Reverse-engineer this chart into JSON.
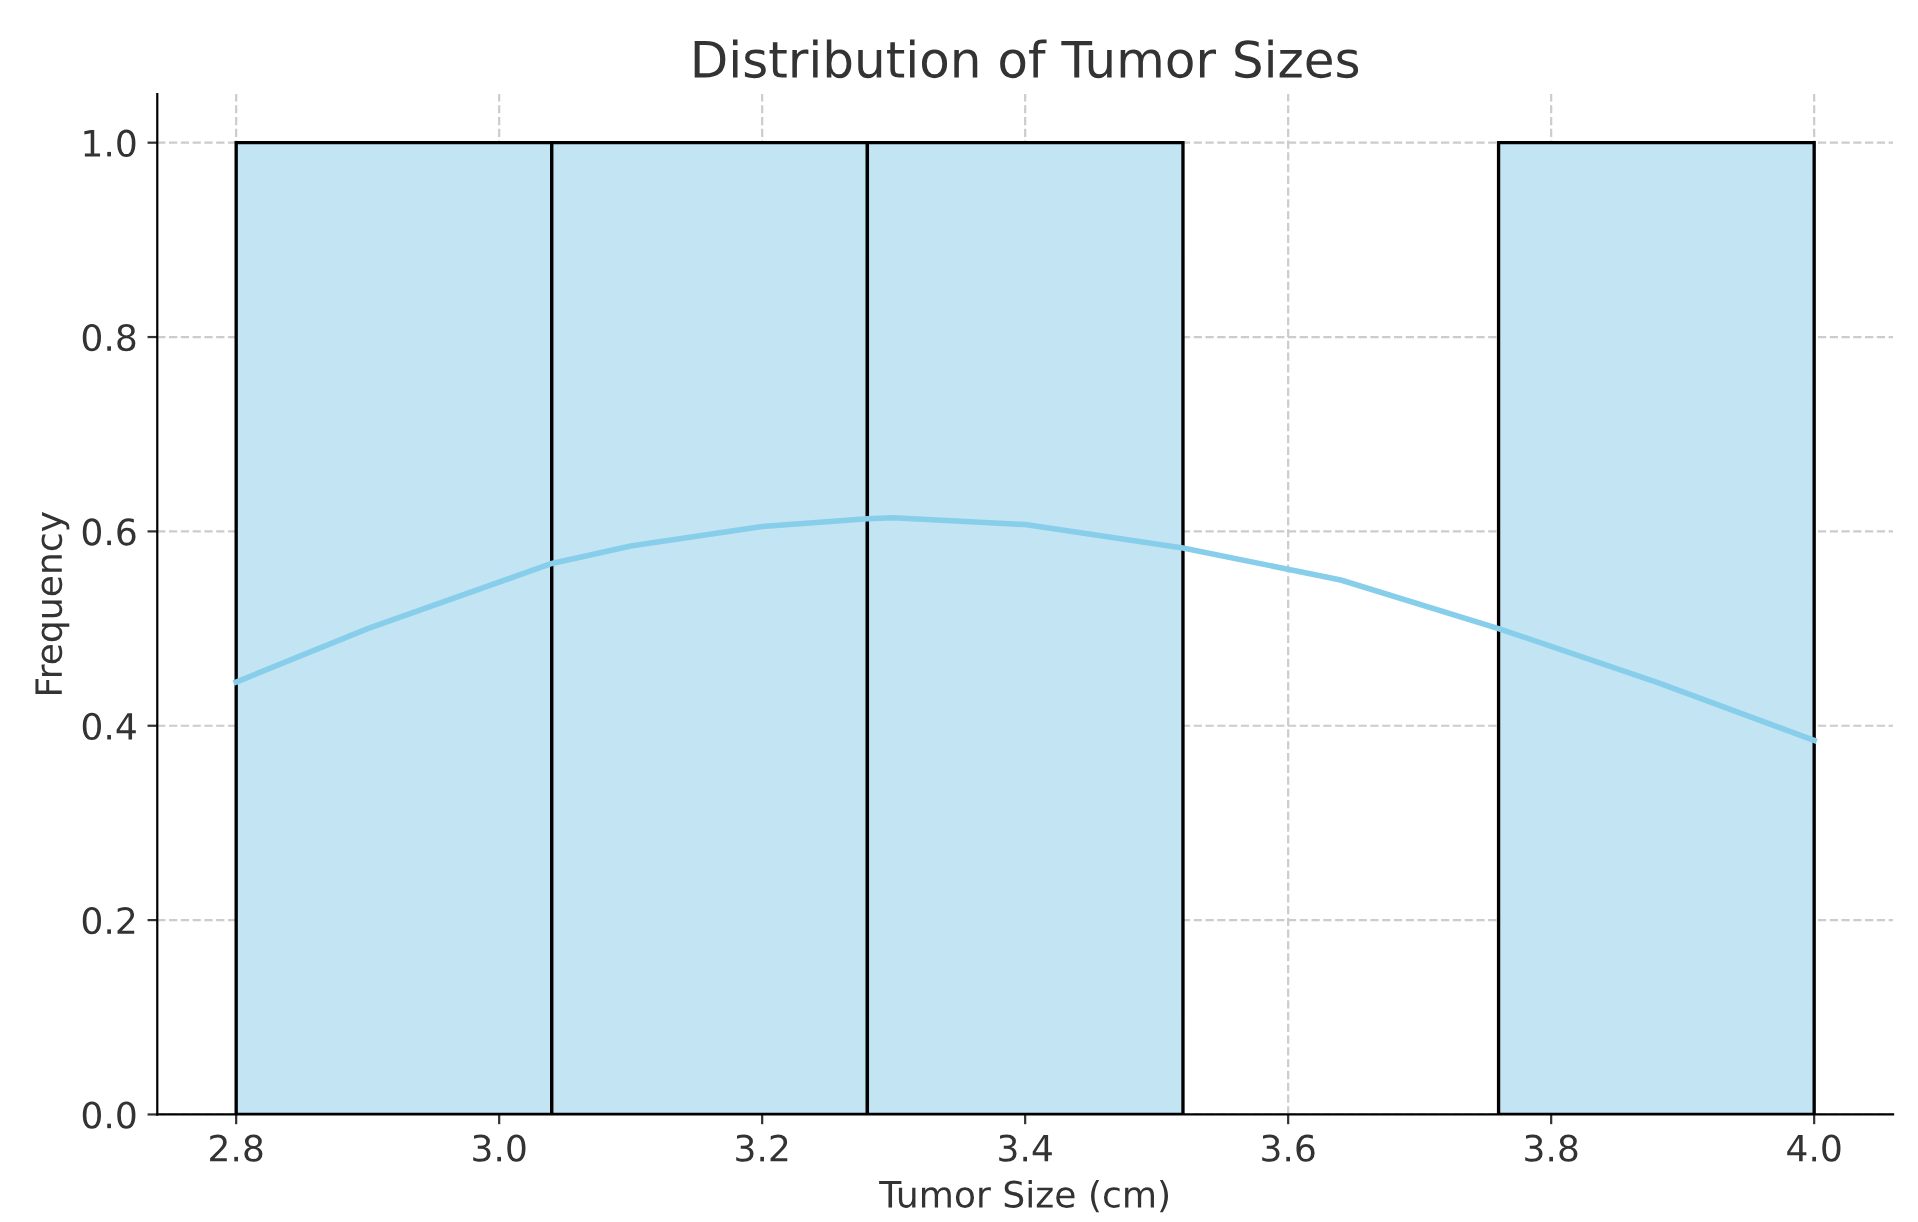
{
  "chart_data": {
    "type": "histogram",
    "title": "Distribution of Tumor Sizes",
    "xlabel": "Tumor Size (cm)",
    "ylabel": "Frequency",
    "bins": [
      2.8,
      3.04,
      3.28,
      3.52,
      3.76,
      4.0
    ],
    "values": [
      1,
      1,
      1,
      0,
      1
    ],
    "color": "#c3e4f3",
    "series": [
      {
        "type": "line",
        "color": "#87ceeb",
        "x": [
          2.8,
          2.9,
          3.04,
          3.1,
          3.2,
          3.28,
          3.3,
          3.4,
          3.52,
          3.64,
          3.76,
          3.88,
          4.0
        ],
        "values": [
          0.445,
          0.5,
          0.567,
          0.585,
          0.605,
          0.613,
          0.614,
          0.607,
          0.583,
          0.55,
          0.5,
          0.445,
          0.385
        ]
      }
    ],
    "xlim": [
      2.74,
      4.06
    ],
    "ylim": [
      0,
      1.05
    ],
    "xticks": [
      {
        "value": 2.8,
        "label": "2.8"
      },
      {
        "value": 3.0,
        "label": "3.0"
      },
      {
        "value": 3.2,
        "label": "3.2"
      },
      {
        "value": 3.4,
        "label": "3.4"
      },
      {
        "value": 3.6,
        "label": "3.6"
      },
      {
        "value": 3.8,
        "label": "3.8"
      },
      {
        "value": 4.0,
        "label": "4.0"
      }
    ],
    "yticks": [
      {
        "value": 0,
        "label": "0.0"
      },
      {
        "value": 0.2,
        "label": "0.2"
      },
      {
        "value": 0.4,
        "label": "0.4"
      },
      {
        "value": 0.6,
        "label": "0.6"
      },
      {
        "value": 0.8,
        "label": "0.8"
      },
      {
        "value": 1.0,
        "label": "1.0"
      }
    ],
    "grid": true
  }
}
